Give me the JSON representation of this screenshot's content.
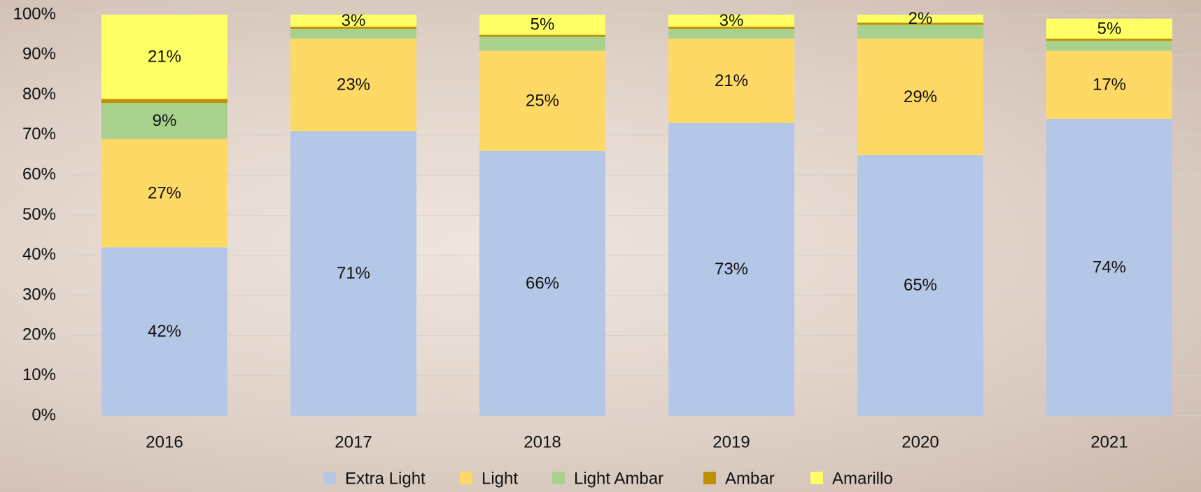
{
  "chart_data": {
    "type": "stacked_bar",
    "categories": [
      "2016",
      "2017",
      "2018",
      "2019",
      "2020",
      "2021"
    ],
    "series": [
      {
        "name": "Extra Light",
        "color": "#b4c7e7",
        "values": [
          42,
          71,
          66,
          73,
          65,
          74
        ],
        "value_labels": [
          "42%",
          "71%",
          "66%",
          "73%",
          "65%",
          "74%"
        ]
      },
      {
        "name": "Light",
        "color": "#ffd966",
        "values": [
          27,
          23,
          25,
          21,
          29,
          17
        ],
        "value_labels": [
          "27%",
          "23%",
          "25%",
          "21%",
          "29%",
          "17%"
        ]
      },
      {
        "name": "Light Ambar",
        "color": "#a9d18e",
        "values": [
          9,
          2.5,
          3.5,
          2.5,
          3.5,
          2.5
        ],
        "value_labels": [
          "9%",
          null,
          null,
          null,
          null,
          null
        ]
      },
      {
        "name": "Ambar",
        "color": "#bf9000",
        "values": [
          1,
          0.5,
          0.5,
          0.5,
          0.5,
          0.5
        ],
        "value_labels": [
          null,
          null,
          null,
          null,
          null,
          null
        ]
      },
      {
        "name": "Amarillo",
        "color": "#ffff66",
        "values": [
          21,
          3,
          5,
          3,
          2,
          5
        ],
        "value_labels": [
          "21%",
          "3%",
          "5%",
          "3%",
          "2%",
          "5%"
        ]
      }
    ],
    "ylim": [
      0,
      100
    ],
    "yticks": [
      {
        "value": 0,
        "label": "0%"
      },
      {
        "value": 10,
        "label": "10%"
      },
      {
        "value": 20,
        "label": "20%"
      },
      {
        "value": 30,
        "label": "30%"
      },
      {
        "value": 40,
        "label": "40%"
      },
      {
        "value": 50,
        "label": "50%"
      },
      {
        "value": 60,
        "label": "60%"
      },
      {
        "value": 70,
        "label": "70%"
      },
      {
        "value": 80,
        "label": "80%"
      },
      {
        "value": 90,
        "label": "90%"
      },
      {
        "value": 100,
        "label": "100%"
      }
    ],
    "grid": true,
    "legend": "bottom"
  }
}
